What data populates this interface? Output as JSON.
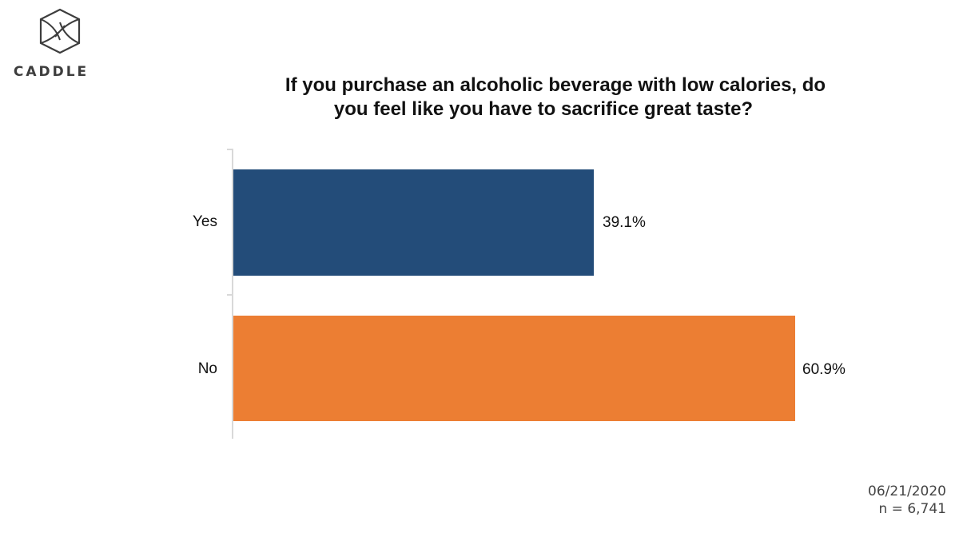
{
  "brand": {
    "logo_icon": "caddle-hexagon-icon",
    "name": "CADDLE"
  },
  "title": {
    "line1": "If you purchase an alcoholic beverage with low calories, do",
    "line2": "you feel like you have to sacrifice great taste?"
  },
  "bars": [
    {
      "label": "Yes",
      "value_label": "39.1%",
      "color": "#234C79"
    },
    {
      "label": "No",
      "value_label": "60.9%",
      "color": "#EC7E33"
    }
  ],
  "footer": {
    "date": "06/21/2020",
    "sample": "n = 6,741"
  },
  "chart_data": {
    "type": "bar",
    "orientation": "horizontal",
    "title": "If you purchase an alcoholic beverage with low calories, do you feel like you have to sacrifice great taste?",
    "categories": [
      "Yes",
      "No"
    ],
    "values": [
      39.1,
      60.9
    ],
    "value_labels": [
      "39.1%",
      "60.9%"
    ],
    "colors": [
      "#234C79",
      "#EC7E33"
    ],
    "xlabel": "",
    "ylabel": "",
    "xlim": [
      0,
      60.9
    ],
    "grid": false,
    "legend": null,
    "annotations": [
      "06/21/2020",
      "n = 6,741"
    ]
  }
}
